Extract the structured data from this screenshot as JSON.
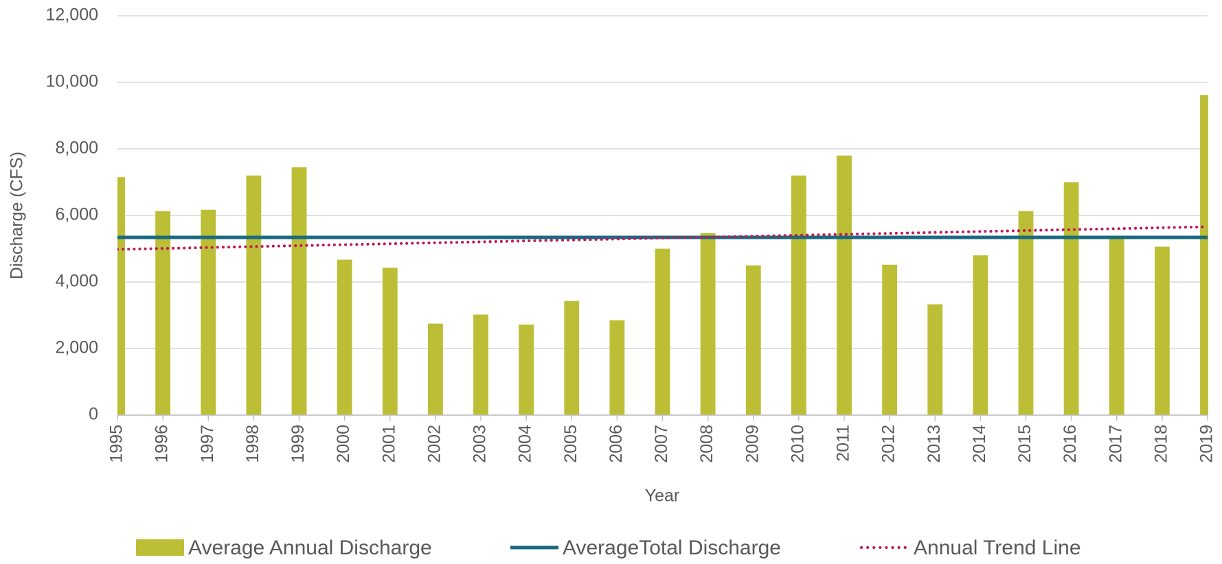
{
  "chart_data": {
    "type": "bar",
    "x_label": "Year",
    "y_label": "Discharge (CFS)",
    "x": [
      1995,
      1996,
      1997,
      1998,
      1999,
      2000,
      2001,
      2002,
      2003,
      2004,
      2005,
      2006,
      2007,
      2008,
      2009,
      2010,
      2011,
      2012,
      2013,
      2014,
      2015,
      2016,
      2017,
      2018,
      2019
    ],
    "xlim": [
      1995,
      2019
    ],
    "xticks": [
      1995,
      1996,
      1997,
      1998,
      1999,
      2000,
      2001,
      2002,
      2003,
      2004,
      2005,
      2006,
      2007,
      2008,
      2009,
      2010,
      2011,
      2012,
      2013,
      2014,
      2015,
      2016,
      2017,
      2018,
      2019
    ],
    "ylim": [
      0,
      12000
    ],
    "yticks": [
      {
        "value": 0,
        "label": "0"
      },
      {
        "value": 2000,
        "label": "2,000"
      },
      {
        "value": 4000,
        "label": "4,000"
      },
      {
        "value": 6000,
        "label": "6,000"
      },
      {
        "value": 8000,
        "label": "8,000"
      },
      {
        "value": 10000,
        "label": "10,000"
      },
      {
        "value": 12000,
        "label": "12,000"
      }
    ],
    "grid": true,
    "series": [
      {
        "name": "Average Annual Discharge",
        "type": "bar",
        "color": "#bcbf35",
        "values": [
          7150,
          6130,
          6170,
          7200,
          7450,
          4670,
          4430,
          2750,
          3020,
          2720,
          3430,
          2850,
          5000,
          5470,
          4500,
          7200,
          7800,
          4520,
          3330,
          4800,
          6130,
          7000,
          5350,
          5060,
          9620
        ]
      },
      {
        "name": "AverageTotal Discharge",
        "type": "line",
        "color": "#1b6a7f",
        "values": [
          5340,
          5340,
          5340,
          5340,
          5340,
          5340,
          5340,
          5340,
          5340,
          5340,
          5340,
          5340,
          5340,
          5340,
          5340,
          5340,
          5340,
          5340,
          5340,
          5340,
          5340,
          5340,
          5340,
          5340,
          5340
        ]
      },
      {
        "name": "Annual Trend Line",
        "type": "dotted-line",
        "color": "#c0185a",
        "values": [
          4980,
          5008,
          5037,
          5065,
          5093,
          5122,
          5150,
          5178,
          5207,
          5235,
          5263,
          5292,
          5320,
          5348,
          5377,
          5405,
          5433,
          5462,
          5490,
          5518,
          5547,
          5575,
          5603,
          5632,
          5660
        ]
      }
    ]
  }
}
